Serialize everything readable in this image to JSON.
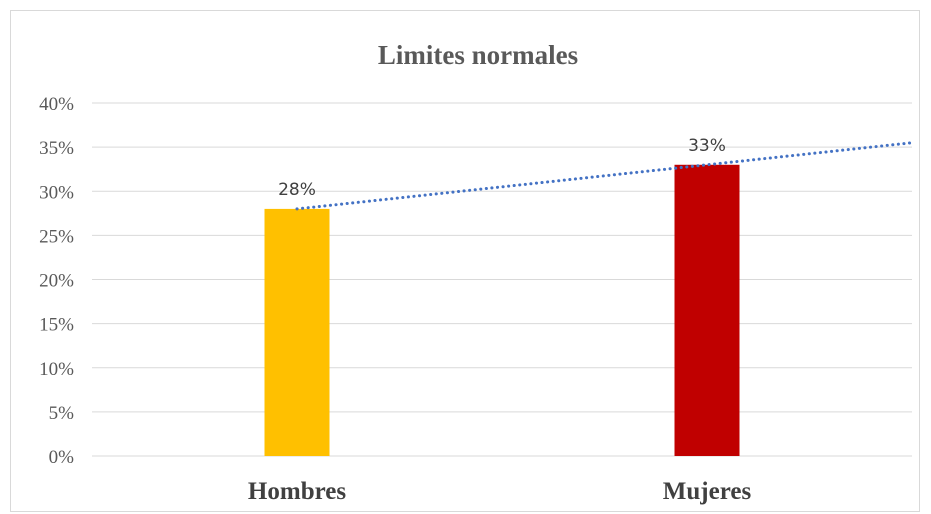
{
  "chart_data": {
    "type": "bar",
    "title": "Limites normales",
    "categories": [
      "Hombres",
      "Mujeres"
    ],
    "values": [
      28,
      33
    ],
    "data_labels": [
      "28%",
      "33%"
    ],
    "colors": [
      "#FFC000",
      "#C00000"
    ],
    "ylim": [
      0,
      40
    ],
    "yticks": [
      0,
      5,
      10,
      15,
      20,
      25,
      30,
      35,
      40
    ],
    "ytick_labels": [
      "0%",
      "5%",
      "10%",
      "15%",
      "20%",
      "25%",
      "30%",
      "35%",
      "40%"
    ],
    "trendline": {
      "type": "linear",
      "color": "#4472C4",
      "style": "dotted",
      "forward_periods": 0.5
    },
    "grid": true,
    "legend": "none"
  }
}
